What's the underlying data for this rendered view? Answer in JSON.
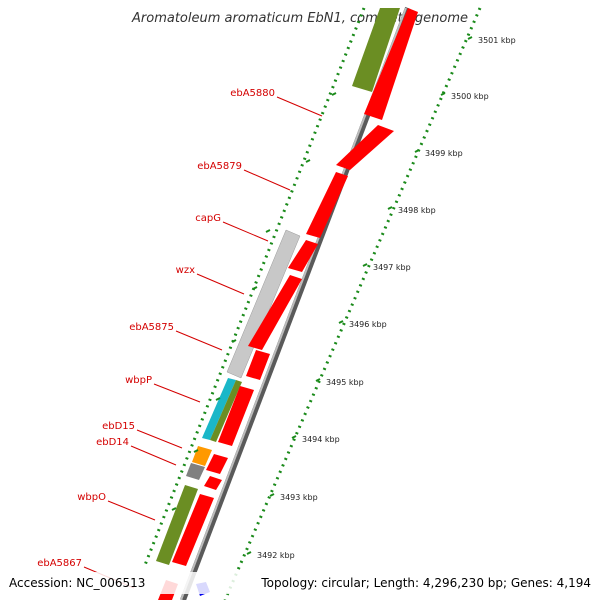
{
  "title": "Aromatoleum aromaticum EbN1, complete genome",
  "footer": {
    "accession": "Accession: NC_006513",
    "summary": "Topology: circular; Length: 4,296,230 bp; Genes: 4,194"
  },
  "colors": {
    "gene_red": "#ff0000",
    "olive": "#6b8e23",
    "light_gray": "#c8c8c8",
    "cyan": "#1ab7c8",
    "orange": "#ff9900",
    "dark_gray": "#808080",
    "blue": "#0000ee",
    "tick_green": "#1a8a1a",
    "label_red": "#d40000"
  },
  "gene_labels": [
    {
      "name": "ebA5880"
    },
    {
      "name": "ebA5879"
    },
    {
      "name": "capG"
    },
    {
      "name": "wzx"
    },
    {
      "name": "ebA5875"
    },
    {
      "name": "wbpP"
    },
    {
      "name": "ebD15"
    },
    {
      "name": "ebD14"
    },
    {
      "name": "wbpO"
    },
    {
      "name": "ebA5867"
    }
  ],
  "ticks": [
    {
      "label": "3501 kbp"
    },
    {
      "label": "3500 kbp"
    },
    {
      "label": "3499 kbp"
    },
    {
      "label": "3498 kbp"
    },
    {
      "label": "3497 kbp"
    },
    {
      "label": "3496 kbp"
    },
    {
      "label": "3495 kbp"
    },
    {
      "label": "3494 kbp"
    },
    {
      "label": "3493 kbp"
    },
    {
      "label": "3492 kbp"
    }
  ]
}
